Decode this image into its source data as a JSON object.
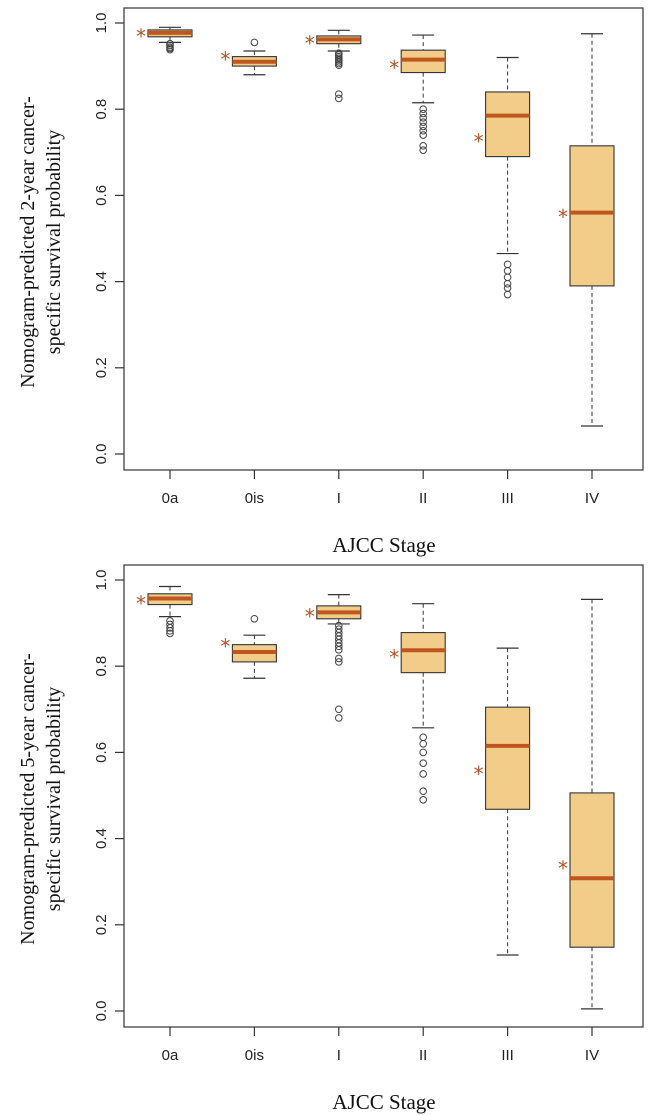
{
  "colors": {
    "box_fill": "#f2cd8a",
    "median": "#c0561f",
    "star": "#b5531f",
    "outline": "#333333"
  },
  "chart_data": [
    {
      "type": "box",
      "title": "",
      "xlabel": "AJCC Stage",
      "ylabel_lines": [
        "Nomogram-predicted 2-year cancer-",
        "specific survival probability"
      ],
      "ylim": [
        0,
        1
      ],
      "yticks": [
        0.0,
        0.2,
        0.4,
        0.6,
        0.8,
        1.0
      ],
      "ytick_labels": [
        "0.0",
        "0.2",
        "0.4",
        "0.6",
        "0.8",
        "1.0"
      ],
      "categories": [
        "0a",
        "0is",
        "I",
        "II",
        "III",
        "IV"
      ],
      "boxes": [
        {
          "min": 0.955,
          "q1": 0.968,
          "median": 0.977,
          "q3": 0.984,
          "max": 0.99,
          "outliers": [
            0.952,
            0.948,
            0.944,
            0.941,
            0.938
          ],
          "observed": 0.973
        },
        {
          "min": 0.88,
          "q1": 0.9,
          "median": 0.91,
          "q3": 0.922,
          "max": 0.935,
          "outliers": [
            0.955
          ],
          "observed": 0.92
        },
        {
          "min": 0.935,
          "q1": 0.952,
          "median": 0.962,
          "q3": 0.97,
          "max": 0.983,
          "outliers": [
            0.93,
            0.926,
            0.922,
            0.918,
            0.914,
            0.91,
            0.906,
            0.902,
            0.835,
            0.825
          ],
          "observed": 0.957
        },
        {
          "min": 0.815,
          "q1": 0.885,
          "median": 0.915,
          "q3": 0.937,
          "max": 0.972,
          "outliers": [
            0.8,
            0.79,
            0.78,
            0.77,
            0.76,
            0.75,
            0.74,
            0.715,
            0.705
          ],
          "observed": 0.9
        },
        {
          "min": 0.465,
          "q1": 0.69,
          "median": 0.785,
          "q3": 0.84,
          "max": 0.92,
          "outliers": [
            0.44,
            0.425,
            0.41,
            0.395,
            0.385,
            0.37
          ],
          "observed": 0.73
        },
        {
          "min": 0.065,
          "q1": 0.39,
          "median": 0.56,
          "q3": 0.715,
          "max": 0.975,
          "outliers": [],
          "observed": 0.555
        }
      ],
      "grid": false,
      "legend": "none"
    },
    {
      "type": "box",
      "title": "",
      "xlabel": "AJCC Stage",
      "ylabel_lines": [
        "Nomogram-predicted 5-year cancer-",
        "specific survival probability"
      ],
      "ylim": [
        0,
        1
      ],
      "yticks": [
        0.0,
        0.2,
        0.4,
        0.6,
        0.8,
        1.0
      ],
      "ytick_labels": [
        "0.0",
        "0.2",
        "0.4",
        "0.6",
        "0.8",
        "1.0"
      ],
      "categories": [
        "0a",
        "0is",
        "I",
        "II",
        "III",
        "IV"
      ],
      "boxes": [
        {
          "min": 0.915,
          "q1": 0.943,
          "median": 0.957,
          "q3": 0.968,
          "max": 0.985,
          "outliers": [
            0.905,
            0.897,
            0.889,
            0.882,
            0.876
          ],
          "observed": 0.95
        },
        {
          "min": 0.772,
          "q1": 0.81,
          "median": 0.833,
          "q3": 0.85,
          "max": 0.872,
          "outliers": [
            0.91
          ],
          "observed": 0.85
        },
        {
          "min": 0.898,
          "q1": 0.91,
          "median": 0.925,
          "q3": 0.94,
          "max": 0.966,
          "outliers": [
            0.894,
            0.886,
            0.878,
            0.87,
            0.862,
            0.854,
            0.846,
            0.838,
            0.818,
            0.81,
            0.7,
            0.68
          ],
          "observed": 0.92
        },
        {
          "min": 0.657,
          "q1": 0.785,
          "median": 0.837,
          "q3": 0.878,
          "max": 0.945,
          "outliers": [
            0.635,
            0.62,
            0.6,
            0.575,
            0.55,
            0.51,
            0.49
          ],
          "observed": 0.825
        },
        {
          "min": 0.13,
          "q1": 0.468,
          "median": 0.615,
          "q3": 0.705,
          "max": 0.842,
          "outliers": [],
          "observed": 0.555
        },
        {
          "min": 0.005,
          "q1": 0.148,
          "median": 0.308,
          "q3": 0.506,
          "max": 0.955,
          "outliers": [],
          "observed": 0.335
        }
      ],
      "grid": false,
      "legend": "none"
    }
  ]
}
